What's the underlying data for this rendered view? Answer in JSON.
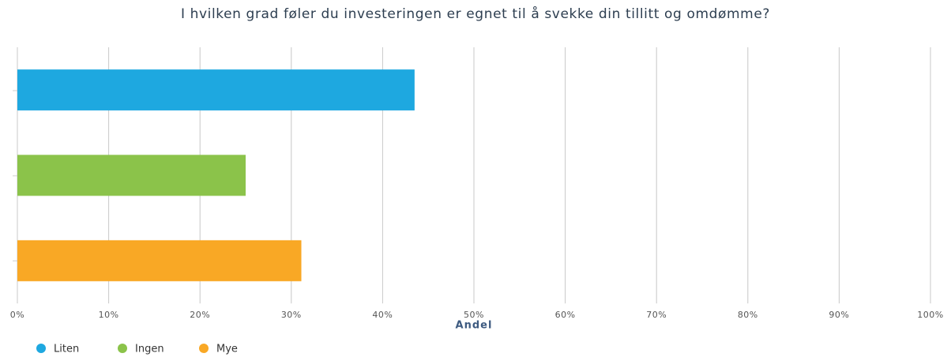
{
  "chart_data": {
    "type": "bar",
    "orientation": "horizontal",
    "title": "I hvilken grad føler du investeringen er egnet til å svekke din tillitt og omdømme?",
    "xlabel": "Andel",
    "categories": [
      null
    ],
    "series": [
      {
        "name": "Liten",
        "color": "#1ea8e0",
        "values": [
          43.5
        ]
      },
      {
        "name": "Ingen",
        "color": "#8bc34a",
        "values": [
          25
        ]
      },
      {
        "name": "Mye",
        "color": "#f9a825",
        "values": [
          31.1
        ]
      }
    ],
    "xlim": [
      0,
      100
    ],
    "xticks": [
      {
        "value": 0,
        "label": "0%"
      },
      {
        "value": 10,
        "label": "10%"
      },
      {
        "value": 20,
        "label": "20%"
      },
      {
        "value": 30,
        "label": "30%"
      },
      {
        "value": 40,
        "label": "40%"
      },
      {
        "value": 50,
        "label": "50%"
      },
      {
        "value": 60,
        "label": "60%"
      },
      {
        "value": 70,
        "label": "70%"
      },
      {
        "value": 80,
        "label": "80%"
      },
      {
        "value": 90,
        "label": "90%"
      },
      {
        "value": 100,
        "label": "100%"
      }
    ],
    "grid": true,
    "legend": "bottom-left"
  }
}
